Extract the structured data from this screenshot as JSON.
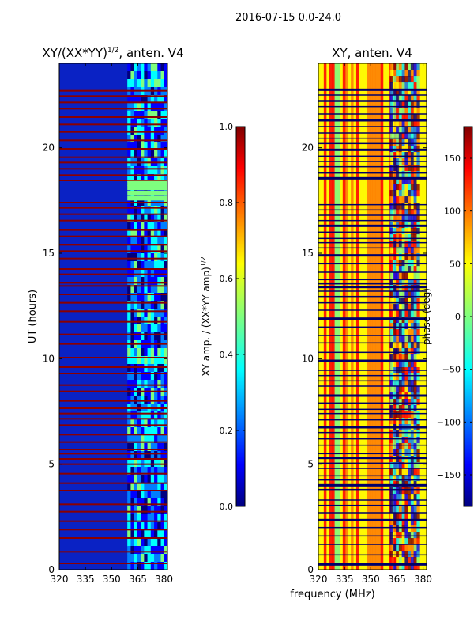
{
  "figure": {
    "suptitle": "2016-07-15 0.0-24.0",
    "xlabel": "frequency (MHz)"
  },
  "colors": {
    "jet": [
      "#00007f",
      "#0000ff",
      "#007fff",
      "#00ffff",
      "#7fff7f",
      "#ffff00",
      "#ff7f00",
      "#ff0000",
      "#7f0000"
    ],
    "stripe": "#8b0000",
    "band_dark": "#00006a",
    "axis": "#000000"
  },
  "chart_data": [
    {
      "type": "heatmap",
      "name": "amplitude",
      "title_main": "XY/(XX*YY)",
      "title_sup": "1/2",
      "title_tail": ", anten. V4",
      "xlabel": "frequency (MHz)",
      "ylabel": "UT (hours)",
      "xlim": [
        320,
        382
      ],
      "ylim": [
        0,
        24
      ],
      "xticks": [
        "320",
        "335",
        "350",
        "365",
        "380"
      ],
      "xtick_values": [
        320,
        335,
        350,
        365,
        380
      ],
      "yticks": [
        "0",
        "5",
        "10",
        "15",
        "20"
      ],
      "ytick_values": [
        0,
        5,
        10,
        15,
        20
      ],
      "colorbar": {
        "label_main": "XY amp. / (XX*YY amp)",
        "label_sup": "1/2",
        "range": [
          0.0,
          1.0
        ],
        "ticks": [
          "0.0",
          "0.2",
          "0.4",
          "0.6",
          "0.8",
          "1.0"
        ],
        "tick_values": [
          0.0,
          0.2,
          0.4,
          0.6,
          0.8,
          1.0
        ]
      },
      "flagged_rows_hours": [
        0.3,
        0.85,
        1.5,
        1.9,
        2.3,
        2.75,
        3.1,
        3.75,
        4.1,
        4.55,
        5.0,
        5.25,
        5.5,
        5.7,
        6.05,
        6.4,
        6.85,
        7.15,
        7.4,
        7.65,
        8.0,
        8.45,
        8.75,
        9.3,
        9.6,
        10.05,
        10.7,
        11.15,
        11.75,
        12.25,
        12.65,
        13.05,
        13.45,
        13.6,
        14.0,
        14.25,
        14.75,
        15.1,
        15.4,
        15.8,
        16.1,
        16.55,
        16.85,
        17.15,
        17.4,
        18.45,
        18.7,
        19.0,
        19.3,
        19.55,
        19.95,
        20.35,
        20.75,
        21.1,
        21.45,
        21.85,
        22.15,
        22.45,
        22.7
      ],
      "bright_rows_hours": [
        17.5,
        17.75,
        18.0,
        18.2
      ],
      "rfi_band_mhz": [
        359,
        382
      ]
    },
    {
      "type": "heatmap",
      "name": "phase",
      "title": "XY, anten. V4",
      "xlabel": "frequency (MHz)",
      "xlim": [
        320,
        382
      ],
      "ylim": [
        0,
        24
      ],
      "xticks": [
        "320",
        "335",
        "350",
        "365",
        "380"
      ],
      "xtick_values": [
        320,
        335,
        350,
        365,
        380
      ],
      "yticks": [
        "0",
        "5",
        "10",
        "15",
        "20"
      ],
      "ytick_values": [
        0,
        5,
        10,
        15,
        20
      ],
      "colorbar": {
        "label": "phase (deg)",
        "range": [
          -180,
          180
        ],
        "ticks": [
          "−150",
          "−100",
          "−50",
          "0",
          "50",
          "100",
          "150"
        ],
        "tick_values": [
          -150,
          -100,
          -50,
          0,
          50,
          100,
          150
        ]
      },
      "flagged_rows_hours": [
        0.25,
        0.7,
        1.2,
        1.6,
        2.0,
        2.35,
        2.7,
        3.05,
        3.3,
        3.8,
        4.0,
        4.25,
        4.45,
        4.8,
        5.05,
        5.3,
        5.5,
        5.9,
        6.2,
        6.5,
        6.75,
        7.1,
        7.4,
        7.6,
        7.9,
        8.25,
        8.7,
        8.95,
        9.2,
        9.45,
        9.9,
        10.3,
        10.75,
        11.1,
        11.5,
        11.9,
        12.3,
        12.65,
        12.95,
        13.2,
        13.4,
        13.55,
        13.75,
        14.1,
        14.5,
        14.9,
        15.25,
        15.5,
        15.7,
        16.0,
        16.3,
        16.55,
        16.8,
        17.05,
        17.3,
        18.55,
        18.8,
        19.1,
        19.35,
        19.6,
        19.9,
        20.2,
        20.45,
        20.7,
        21.0,
        21.3,
        21.6,
        21.95,
        22.2,
        22.5,
        22.75
      ],
      "rfi_band_mhz": [
        361,
        378
      ]
    }
  ]
}
